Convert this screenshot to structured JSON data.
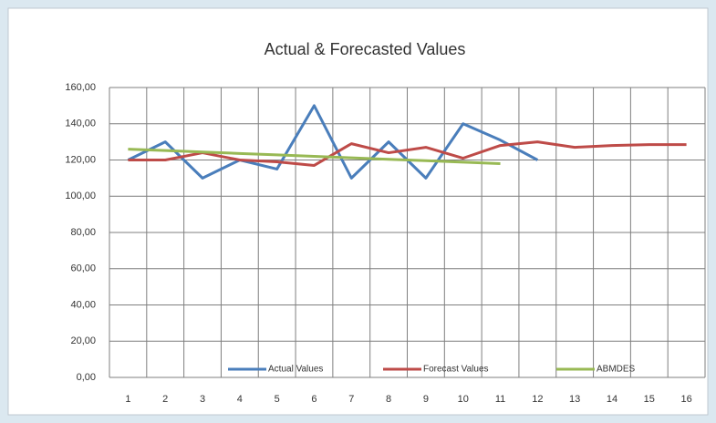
{
  "chart_data": {
    "type": "line",
    "title": "Actual & Forecasted Values",
    "categories": [
      "1",
      "2",
      "3",
      "4",
      "5",
      "6",
      "7",
      "8",
      "9",
      "10",
      "11",
      "12",
      "13",
      "14",
      "15",
      "16"
    ],
    "series": [
      {
        "name": "Actual Values",
        "color": "#4a7ebb",
        "values": [
          120,
          130,
          110,
          120,
          115,
          150,
          110,
          130,
          110,
          140,
          131,
          120,
          null,
          null,
          null,
          null
        ]
      },
      {
        "name": "Forecast Values",
        "color": "#be4b48",
        "values": [
          120,
          120,
          124,
          120,
          119,
          117,
          129,
          124,
          127,
          121,
          128,
          130,
          127,
          128,
          128.5,
          128.5
        ]
      },
      {
        "name": "ABMDES",
        "color": "#98b954",
        "values": [
          126,
          125.2,
          124.4,
          123.6,
          122.8,
          122,
          121.2,
          120.4,
          119.6,
          118.8,
          118,
          null,
          null,
          null,
          null,
          null
        ]
      }
    ],
    "ylim": [
      0,
      160
    ],
    "yticks": [
      {
        "value": 0,
        "label": "0,00"
      },
      {
        "value": 20,
        "label": "20,00"
      },
      {
        "value": 40,
        "label": "40,00"
      },
      {
        "value": 60,
        "label": "60,00"
      },
      {
        "value": 80,
        "label": "80,00"
      },
      {
        "value": 100,
        "label": "100,00"
      },
      {
        "value": 120,
        "label": "120,00"
      },
      {
        "value": 140,
        "label": "140,00"
      },
      {
        "value": 160,
        "label": "160,00"
      }
    ],
    "grid": true,
    "legend": "bottom"
  }
}
